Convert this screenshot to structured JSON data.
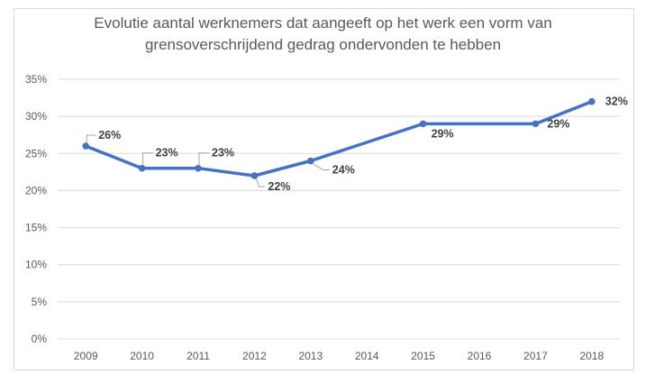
{
  "chart_data": {
    "type": "line",
    "title_line1": "Evolutie aantal werknemers dat aangeeft op het werk een vorm van",
    "title_line2": "grensoverschrijdend gedrag ondervonden te hebben",
    "categories": [
      "2009",
      "2010",
      "2011",
      "2012",
      "2013",
      "2014",
      "2015",
      "2016",
      "2017",
      "2018"
    ],
    "series": [
      {
        "points": [
          {
            "x": "2009",
            "y": 26,
            "label": "26%"
          },
          {
            "x": "2010",
            "y": 23,
            "label": "23%"
          },
          {
            "x": "2011",
            "y": 23,
            "label": "23%"
          },
          {
            "x": "2012",
            "y": 22,
            "label": "22%"
          },
          {
            "x": "2013",
            "y": 24,
            "label": "24%"
          },
          {
            "x": "2015",
            "y": 29,
            "label": "29%"
          },
          {
            "x": "2017",
            "y": 29,
            "label": "29%"
          },
          {
            "x": "2018",
            "y": 32,
            "label": "32%"
          }
        ]
      }
    ],
    "y_ticks": [
      "0%",
      "5%",
      "10%",
      "15%",
      "20%",
      "25%",
      "30%",
      "35%"
    ],
    "ylim": [
      0,
      35
    ],
    "y_unit": "%",
    "grid": "horizontal",
    "legend": "none",
    "colors": {
      "line": "#4472c4",
      "grid": "#d9d9d9",
      "text": "#595959",
      "label": "#404040",
      "leader": "#a6a6a6"
    }
  }
}
